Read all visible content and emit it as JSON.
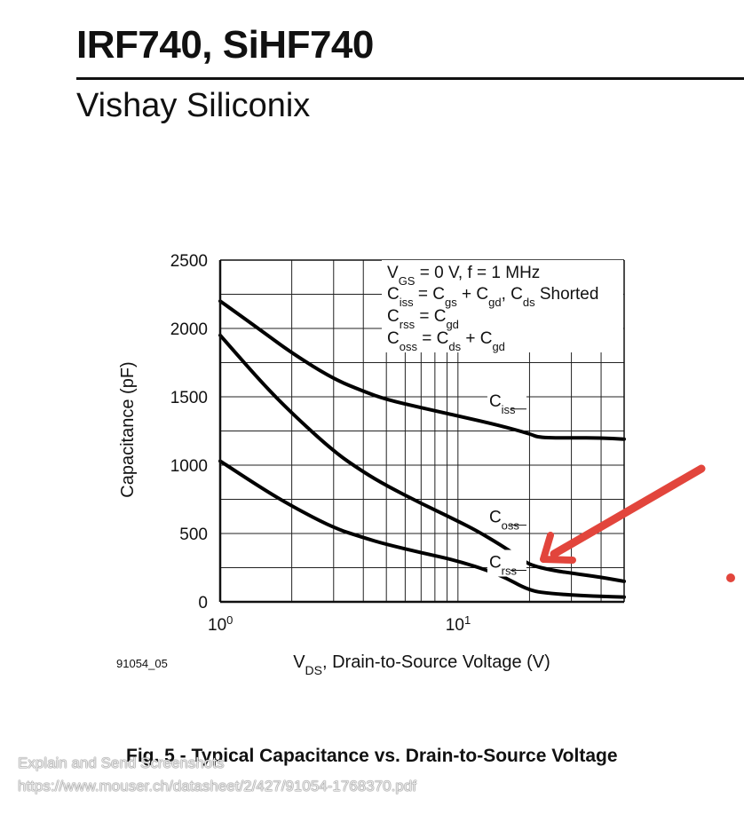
{
  "document": {
    "title": "IRF740, SiHF740",
    "subtitle": "Vishay Siliconix",
    "figure_id": "91054_05",
    "caption": "Fig. 5 - Typical Capacitance vs. Drain-to-Source Voltage"
  },
  "overlay": {
    "app_label": "Explain and Send Screenshots",
    "source_url": "https://www.mouser.ch/datasheet/2/427/91054-1768370.pdf"
  },
  "annotation": {
    "arrow_color": "#e2453c",
    "arrow_target": "Crss/Coss knee near VDS ≈ 20 V"
  },
  "chart_data": {
    "type": "line",
    "x_scale": "log",
    "xlim": [
      1,
      50
    ],
    "ylim": [
      0,
      2500
    ],
    "xlabel": "VDS, Drain-to-Source Voltage (V)",
    "ylabel": "Capacitance (pF)",
    "yticks": [
      0,
      500,
      1000,
      1500,
      2000,
      2500
    ],
    "xticks": [
      {
        "value": 1,
        "base": "10",
        "exp": "0"
      },
      {
        "value": 10,
        "base": "10",
        "exp": "1"
      }
    ],
    "grid": true,
    "conditions": [
      "VGS = 0 V, f = 1 MHz",
      "Ciss = Cgs + Cgd, Cds Shorted",
      "Crss = Cgd",
      "Coss = Cds + Cgd"
    ],
    "series": [
      {
        "name": "Ciss",
        "x": [
          1,
          1.5,
          2,
          3,
          4,
          5,
          7,
          10,
          15,
          20,
          22,
          30,
          40,
          50
        ],
        "values": [
          2200,
          1980,
          1820,
          1630,
          1540,
          1480,
          1420,
          1360,
          1290,
          1230,
          1200,
          1200,
          1200,
          1190
        ]
      },
      {
        "name": "Coss",
        "x": [
          1,
          1.5,
          2,
          3,
          4,
          5,
          7,
          10,
          12,
          15,
          18,
          20,
          25,
          30,
          40,
          50
        ],
        "values": [
          1950,
          1600,
          1380,
          1100,
          950,
          850,
          720,
          590,
          520,
          420,
          330,
          270,
          230,
          210,
          180,
          150
        ]
      },
      {
        "name": "Crss",
        "x": [
          1,
          1.5,
          2,
          3,
          4,
          5,
          7,
          10,
          15,
          20,
          25,
          30,
          40,
          50
        ],
        "values": [
          1030,
          830,
          700,
          540,
          470,
          420,
          360,
          300,
          200,
          80,
          60,
          50,
          40,
          35
        ]
      }
    ],
    "labels": [
      {
        "name": "Ciss",
        "main": "C",
        "sub": "iss"
      },
      {
        "name": "Coss",
        "main": "C",
        "sub": "oss"
      },
      {
        "name": "Crss",
        "main": "C",
        "sub": "rss"
      }
    ]
  }
}
